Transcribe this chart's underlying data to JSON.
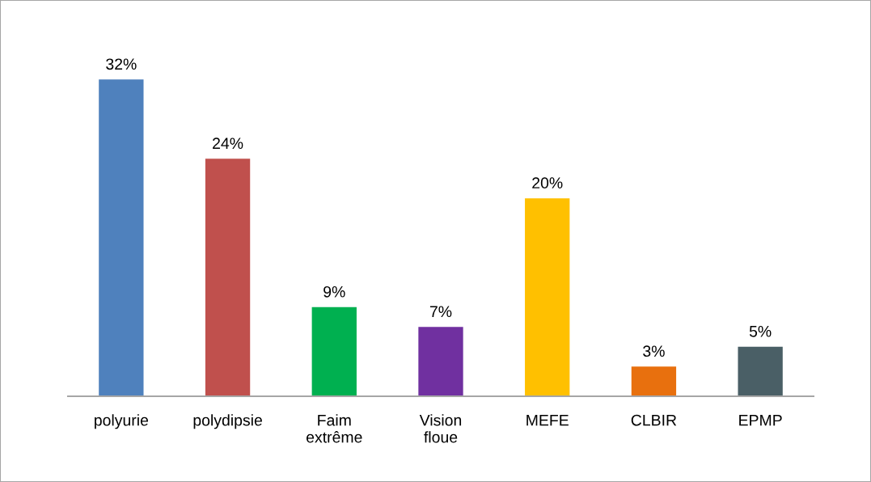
{
  "chart_data": {
    "type": "bar",
    "categories": [
      "polyurie",
      "polydipsie",
      "Faim\nextrême",
      "Vision\nfloue",
      "MEFE",
      "CLBIR",
      "EPMP"
    ],
    "values": [
      32,
      24,
      9,
      7,
      20,
      3,
      5
    ],
    "colors": [
      "#4f81bd",
      "#c0504d",
      "#00b050",
      "#7030a0",
      "#ffc000",
      "#e8700e",
      "#4a5f66"
    ],
    "value_labels": [
      "32%",
      "24%",
      "9%",
      "7%",
      "20%",
      "3%",
      "5%"
    ],
    "tick_labels": "x",
    "grid": false,
    "legend": false
  }
}
